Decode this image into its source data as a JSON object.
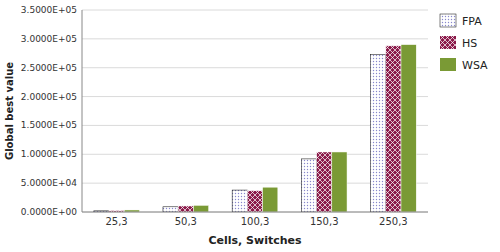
{
  "chart_data": {
    "type": "bar",
    "categories": [
      "25,3",
      "50,3",
      "100,3",
      "150,3",
      "250,3"
    ],
    "series": [
      {
        "name": "FPA",
        "color": "#8888cc",
        "values": [
          2000,
          9000,
          38000,
          92000,
          273000
        ]
      },
      {
        "name": "HS",
        "color": "#8b1a4a",
        "values": [
          2500,
          10500,
          37000,
          104000,
          288000
        ]
      },
      {
        "name": "WSA",
        "color": "#7a9a35",
        "values": [
          3500,
          11500,
          43000,
          104000,
          290000
        ]
      }
    ],
    "x_label": "Cells, Switches",
    "y_label": "Global best value",
    "ylim": [
      0,
      350000
    ],
    "yticks": [
      {
        "value": 0,
        "label": "0.0000E+00"
      },
      {
        "value": 50000,
        "label": "5.0000E+04"
      },
      {
        "value": 100000,
        "label": "1.0000E+05"
      },
      {
        "value": 150000,
        "label": "1.5000E+05"
      },
      {
        "value": 200000,
        "label": "2.0000E+05"
      },
      {
        "value": 250000,
        "label": "2.5000E+05"
      },
      {
        "value": 300000,
        "label": "3.0000E+05"
      },
      {
        "value": 350000,
        "label": "3.5000E+05"
      }
    ],
    "grid": true,
    "legend": "right"
  }
}
